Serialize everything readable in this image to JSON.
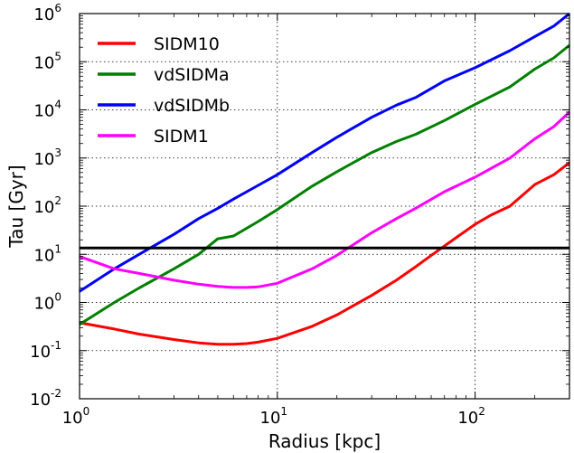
{
  "chart_data": {
    "type": "line",
    "xlabel": "Radius [kpc]",
    "ylabel": "Tau [Gyr]",
    "xscale": "log",
    "yscale": "log",
    "xlim": [
      1,
      300
    ],
    "ylim": [
      0.01,
      1000000
    ],
    "grid": true,
    "legend_position": "top-left",
    "x_ticks": [
      {
        "base": "10",
        "exp": "0",
        "value": 1
      },
      {
        "base": "10",
        "exp": "1",
        "value": 10
      },
      {
        "base": "10",
        "exp": "2",
        "value": 100
      }
    ],
    "y_ticks": [
      {
        "base": "10",
        "exp": "-2",
        "value": 0.01
      },
      {
        "base": "10",
        "exp": "-1",
        "value": 0.1
      },
      {
        "base": "10",
        "exp": "0",
        "value": 1
      },
      {
        "base": "10",
        "exp": "1",
        "value": 10
      },
      {
        "base": "10",
        "exp": "2",
        "value": 100
      },
      {
        "base": "10",
        "exp": "3",
        "value": 1000
      },
      {
        "base": "10",
        "exp": "4",
        "value": 10000
      },
      {
        "base": "10",
        "exp": "5",
        "value": 100000
      },
      {
        "base": "10",
        "exp": "6",
        "value": 1000000
      }
    ],
    "hline": {
      "y": 13.5,
      "color": "#000000"
    },
    "series": [
      {
        "name": "SIDM10",
        "color": "#ff0000",
        "x": [
          1.0,
          1.5,
          2.0,
          3.0,
          4.0,
          5.0,
          6.0,
          7.0,
          8.0,
          10.0,
          15.0,
          20.0,
          30.0,
          40.0,
          50.0,
          60.0,
          80.0,
          100.0,
          120.0,
          150.0,
          200.0,
          250.0,
          300.0
        ],
        "y": [
          0.38,
          0.28,
          0.22,
          0.17,
          0.145,
          0.135,
          0.135,
          0.14,
          0.15,
          0.18,
          0.32,
          0.55,
          1.4,
          2.9,
          5.5,
          9.5,
          22.0,
          42.0,
          65.0,
          100.0,
          280.0,
          450.0,
          800.0
        ]
      },
      {
        "name": "vdSIDMa",
        "color": "#008000",
        "x": [
          1.0,
          1.5,
          2.0,
          3.0,
          4.0,
          5.0,
          6.0,
          8.0,
          10.0,
          15.0,
          20.0,
          30.0,
          40.0,
          50.0,
          70.0,
          100.0,
          150.0,
          200.0,
          250.0,
          300.0
        ],
        "y": [
          0.35,
          1.0,
          2.0,
          5.0,
          10.0,
          21.0,
          24.0,
          48.0,
          85.0,
          260.0,
          520.0,
          1300.0,
          2200.0,
          3100.0,
          6000.0,
          13000.0,
          30000.0,
          70000.0,
          120000.0,
          220000.0
        ]
      },
      {
        "name": "vdSIDMb",
        "color": "#0000ff",
        "x": [
          1.0,
          1.5,
          2.0,
          3.0,
          4.0,
          5.0,
          6.0,
          8.0,
          10.0,
          15.0,
          20.0,
          30.0,
          40.0,
          50.0,
          70.0,
          100.0,
          150.0,
          200.0,
          250.0,
          300.0
        ],
        "y": [
          1.7,
          5.0,
          10.0,
          26.0,
          55.0,
          90.0,
          140.0,
          270.0,
          450.0,
          1300.0,
          2700.0,
          7000.0,
          12500.0,
          18000.0,
          40000.0,
          75000.0,
          170000.0,
          330000.0,
          550000.0,
          1000000.0
        ]
      },
      {
        "name": "SIDM1",
        "color": "#ff00ff",
        "x": [
          1.0,
          1.5,
          2.0,
          3.0,
          4.0,
          5.0,
          6.0,
          7.0,
          8.0,
          10.0,
          15.0,
          20.0,
          30.0,
          40.0,
          50.0,
          70.0,
          100.0,
          150.0,
          200.0,
          250.0,
          300.0
        ],
        "y": [
          9.0,
          5.0,
          4.0,
          2.9,
          2.4,
          2.15,
          2.05,
          2.05,
          2.1,
          2.5,
          5.0,
          9.5,
          28.0,
          55.0,
          90.0,
          200.0,
          400.0,
          1000.0,
          2500.0,
          4500.0,
          9000.0
        ]
      }
    ]
  }
}
